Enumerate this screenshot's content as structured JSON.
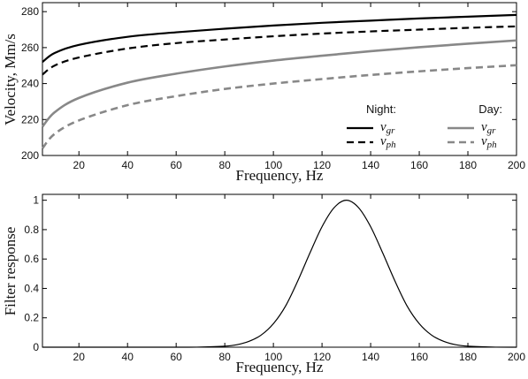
{
  "chart_data": [
    {
      "type": "line",
      "xlabel": "Frequency, Hz",
      "ylabel": "Velocity, Mm/s",
      "xlim": [
        5,
        200
      ],
      "ylim": [
        200,
        285
      ],
      "xticks": [
        20,
        40,
        60,
        80,
        100,
        120,
        140,
        160,
        180,
        200
      ],
      "yticks": [
        200,
        220,
        240,
        260,
        280
      ],
      "grid": false,
      "legend_position": "lower-right",
      "legend_groups": [
        {
          "title": "Night:",
          "color": "#000000"
        },
        {
          "title": "Day:",
          "color": "#888888"
        }
      ],
      "x": [
        5,
        10,
        20,
        40,
        60,
        80,
        100,
        120,
        140,
        160,
        180,
        200
      ],
      "series": [
        {
          "name": "v_gr",
          "group": "Night:",
          "var": "v",
          "sub": "gr",
          "color": "#000000",
          "dash": "solid",
          "values": [
            252,
            257,
            261.5,
            266,
            268.5,
            270.5,
            272.3,
            273.8,
            275,
            276.2,
            277.2,
            278.2
          ]
        },
        {
          "name": "v_ph",
          "group": "Night:",
          "var": "v",
          "sub": "ph",
          "color": "#000000",
          "dash": "dashed",
          "values": [
            245,
            250,
            254.5,
            259.5,
            262.5,
            264.5,
            266.3,
            267.8,
            269,
            270,
            271,
            271.8
          ]
        },
        {
          "name": "v_gr",
          "group": "Day:",
          "var": "v",
          "sub": "gr",
          "color": "#888888",
          "dash": "solid",
          "values": [
            216,
            224,
            232,
            240.5,
            245.5,
            249.5,
            252.8,
            255.5,
            258,
            260.2,
            262.2,
            264
          ]
        },
        {
          "name": "v_ph",
          "group": "Day:",
          "var": "v",
          "sub": "ph",
          "color": "#888888",
          "dash": "dashed",
          "values": [
            204,
            212,
            219.5,
            228,
            233,
            237,
            240,
            242.5,
            244.8,
            246.8,
            248.6,
            250.2
          ]
        }
      ]
    },
    {
      "type": "line",
      "xlabel": "Frequency, Hz",
      "ylabel": "Filter response",
      "xlim": [
        5,
        200
      ],
      "ylim": [
        0,
        1.04
      ],
      "xticks": [
        20,
        40,
        60,
        80,
        100,
        120,
        140,
        160,
        180,
        200
      ],
      "yticks": [
        0,
        0.2,
        0.4,
        0.6,
        0.8,
        1
      ],
      "ytick_labels": [
        "0",
        "0.2",
        "0.4",
        "0.6",
        "0.8",
        "1"
      ],
      "grid": false,
      "x": [
        5,
        60,
        70,
        80,
        85,
        90,
        95,
        100,
        105,
        110,
        115,
        120,
        125,
        130,
        135,
        140,
        145,
        150,
        155,
        160,
        165,
        170,
        175,
        180,
        190,
        200
      ],
      "series": [
        {
          "color": "#000000",
          "dash": "solid",
          "values": [
            0,
            0,
            0.001,
            0.007,
            0.017,
            0.04,
            0.083,
            0.16,
            0.28,
            0.45,
            0.64,
            0.82,
            0.95,
            1.0,
            0.95,
            0.82,
            0.64,
            0.45,
            0.28,
            0.16,
            0.083,
            0.04,
            0.017,
            0.007,
            0.001,
            0
          ]
        }
      ]
    }
  ]
}
